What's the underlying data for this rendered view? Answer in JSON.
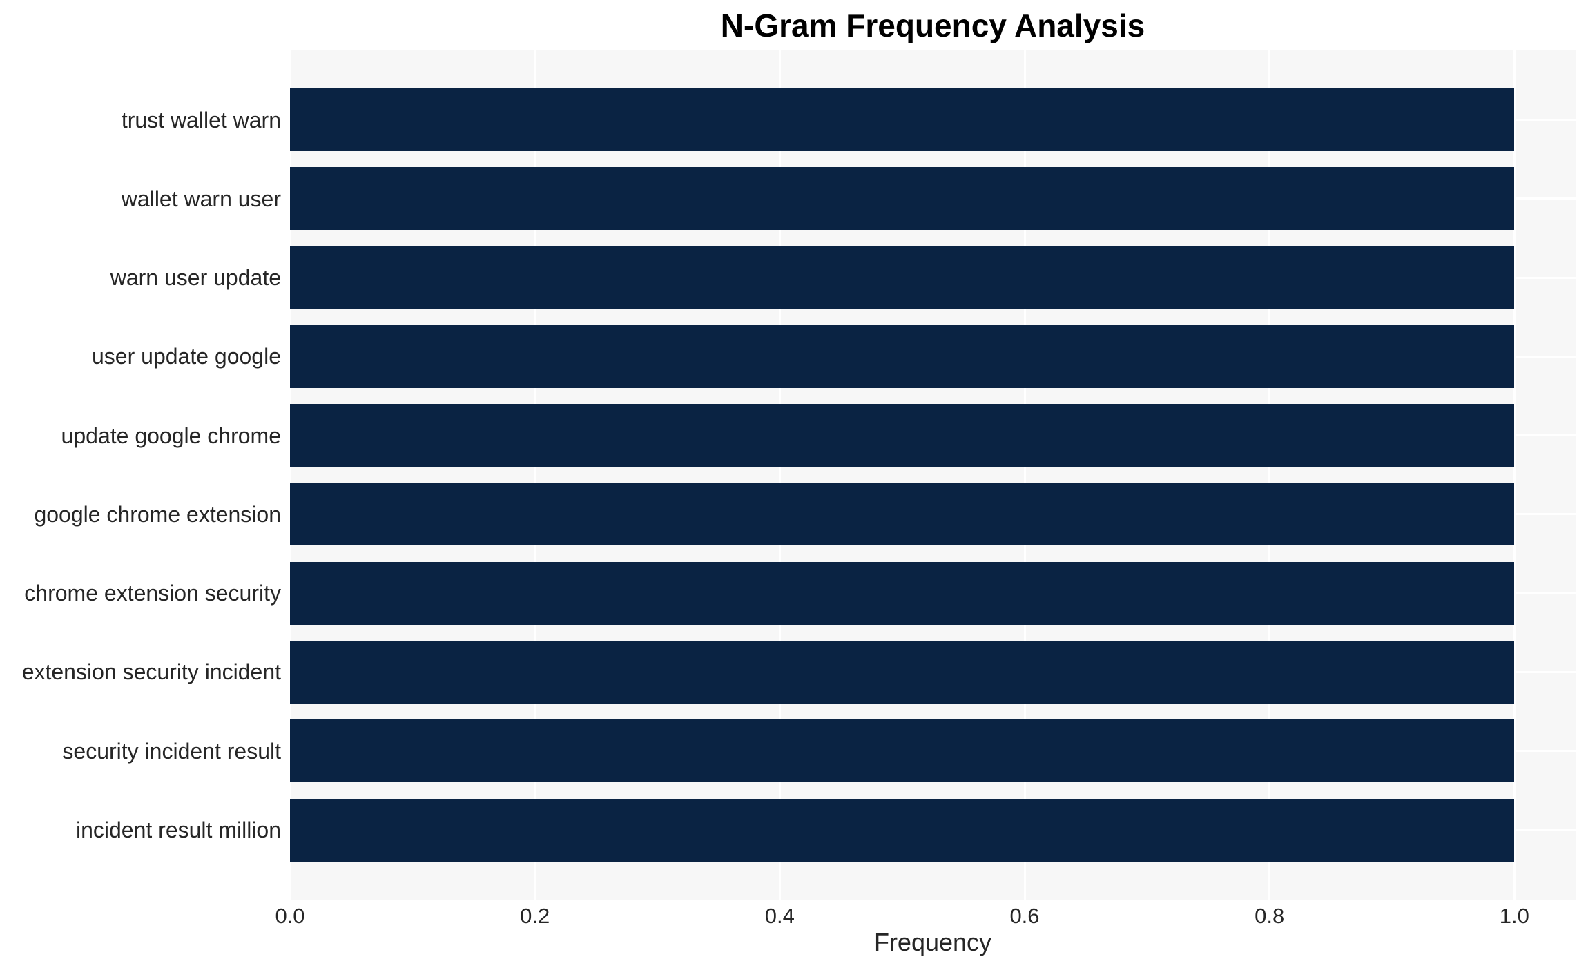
{
  "title": "N-Gram Frequency Analysis",
  "chart_data": {
    "type": "bar",
    "orientation": "horizontal",
    "title": "N-Gram Frequency Analysis",
    "categories": [
      "trust wallet warn",
      "wallet warn user",
      "warn user update",
      "user update google",
      "update google chrome",
      "google chrome extension",
      "chrome extension security",
      "extension security incident",
      "security incident result",
      "incident result million"
    ],
    "values": [
      1.0,
      1.0,
      1.0,
      1.0,
      1.0,
      1.0,
      1.0,
      1.0,
      1.0,
      1.0
    ],
    "xlabel": "Frequency",
    "ylabel": "",
    "xtick_labels": [
      "0.0",
      "0.2",
      "0.4",
      "0.6",
      "0.8",
      "1.0"
    ],
    "xticks": [
      0.0,
      0.2,
      0.4,
      0.6,
      0.8,
      1.0
    ],
    "xlim": [
      0,
      1.05
    ],
    "grid": true,
    "legend": false,
    "colors": {
      "bar": "#0a2343",
      "plot_background": "#f7f7f7",
      "gridline": "#ffffff",
      "tick_text": "#262626",
      "title_text": "#000000"
    }
  }
}
